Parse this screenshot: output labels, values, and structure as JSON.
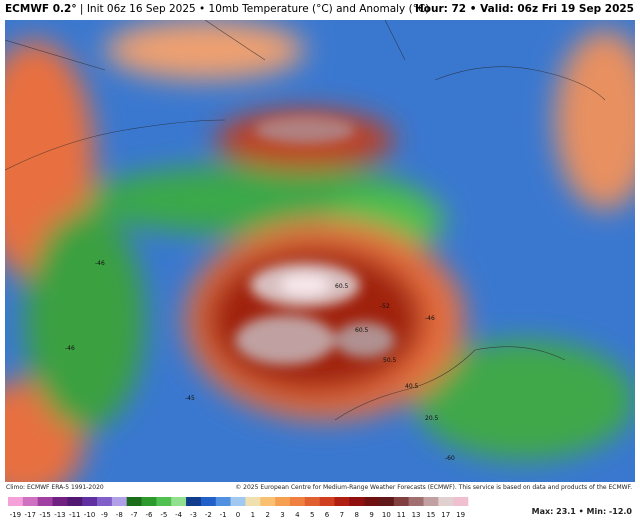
{
  "header": {
    "model": "ECMWF 0.2°",
    "subtitle": "Init 06z 16 Sep 2025 • 10mb Temperature (°C) and Anomaly (°C)",
    "valid": "Hour: 72 • Valid: 06z Fri 19 Sep 2025"
  },
  "footer": {
    "climo": "Climo: ECMWF ERA-5 1991-2020",
    "copyright": "© 2025 European Centre for Medium-Range Weather Forecasts (ECMWF). This service is based on data and products of the ECMWF.",
    "extremes": "Max: 23.1 • Min: -12.0"
  },
  "map": {
    "contour_labels": [
      "-46",
      "-46",
      "-45",
      "-46",
      "60.5",
      "60.5",
      "50.5",
      "-52",
      "40.5",
      "20.5",
      "-60"
    ]
  },
  "colorbar": {
    "labels": [
      -19,
      -17,
      -15,
      -13,
      -11,
      -10,
      -9,
      -8,
      -7,
      -6,
      -5,
      -4,
      -3,
      -2,
      -1,
      0,
      1,
      2,
      3,
      4,
      5,
      6,
      7,
      8,
      9,
      10,
      11,
      13,
      15,
      17,
      19
    ],
    "colors": [
      "#f5a0d8",
      "#d070c0",
      "#a040a0",
      "#702080",
      "#501870",
      "#6030a0",
      "#8060c8",
      "#b0a0e8",
      "#1a6e1a",
      "#2e9a2e",
      "#50c050",
      "#90e090",
      "#103c8c",
      "#2060c8",
      "#5090e0",
      "#a0c8f0",
      "#f0e0b0",
      "#f8c070",
      "#f5a050",
      "#f08040",
      "#e06030",
      "#d04020",
      "#b02010",
      "#901010",
      "#701010",
      "#601818",
      "#804040",
      "#a07070",
      "#c0a0a0",
      "#e0d0d0",
      "#f0c0d0"
    ]
  }
}
